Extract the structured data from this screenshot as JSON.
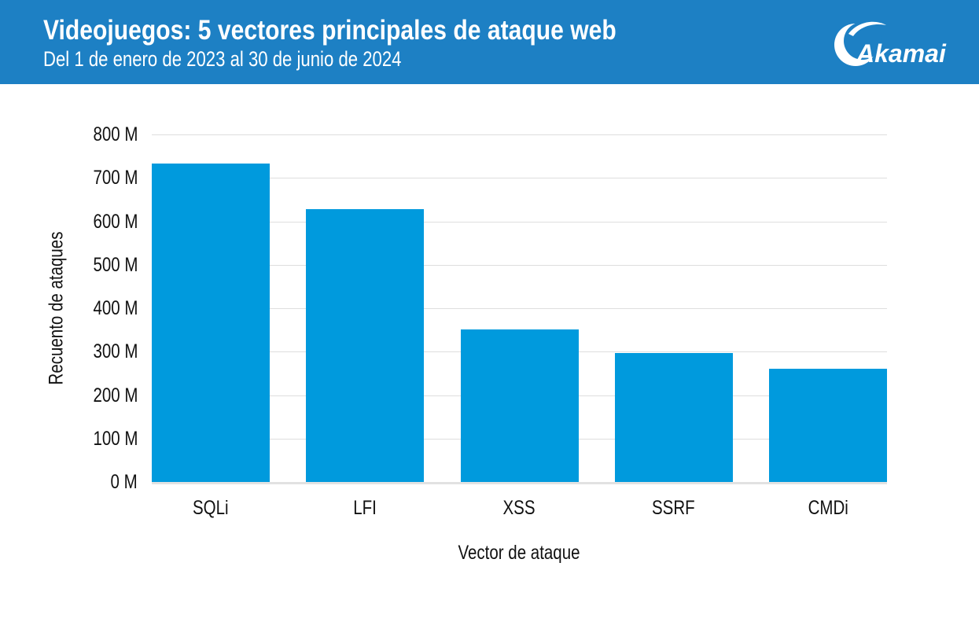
{
  "header": {
    "title": "Videojuegos: 5 vectores principales de ataque web",
    "subtitle": "Del 1 de enero de 2023 al 30 de junio de 2024",
    "logo_text": "Akamai",
    "background": "#1d80c4"
  },
  "chart_data": {
    "type": "bar",
    "categories": [
      "SQLi",
      "LFI",
      "XSS",
      "SSRF",
      "CMDi"
    ],
    "values": [
      733,
      628,
      352,
      297,
      261
    ],
    "unit": "millions of attacks",
    "xlabel": "Vector de ataque",
    "ylabel": "Recuento de ataques",
    "ylim": [
      0,
      800
    ],
    "y_tick_step": 100,
    "y_ticks": [
      "0 M",
      "100 M",
      "200 M",
      "300 M",
      "400 M",
      "500 M",
      "600 M",
      "700 M",
      "800 M"
    ],
    "grid": true,
    "legend": false,
    "bar_color": "#009add",
    "grid_color": "#dedede",
    "baseline_color": "#e2e2e2",
    "text_color": "#111111"
  }
}
